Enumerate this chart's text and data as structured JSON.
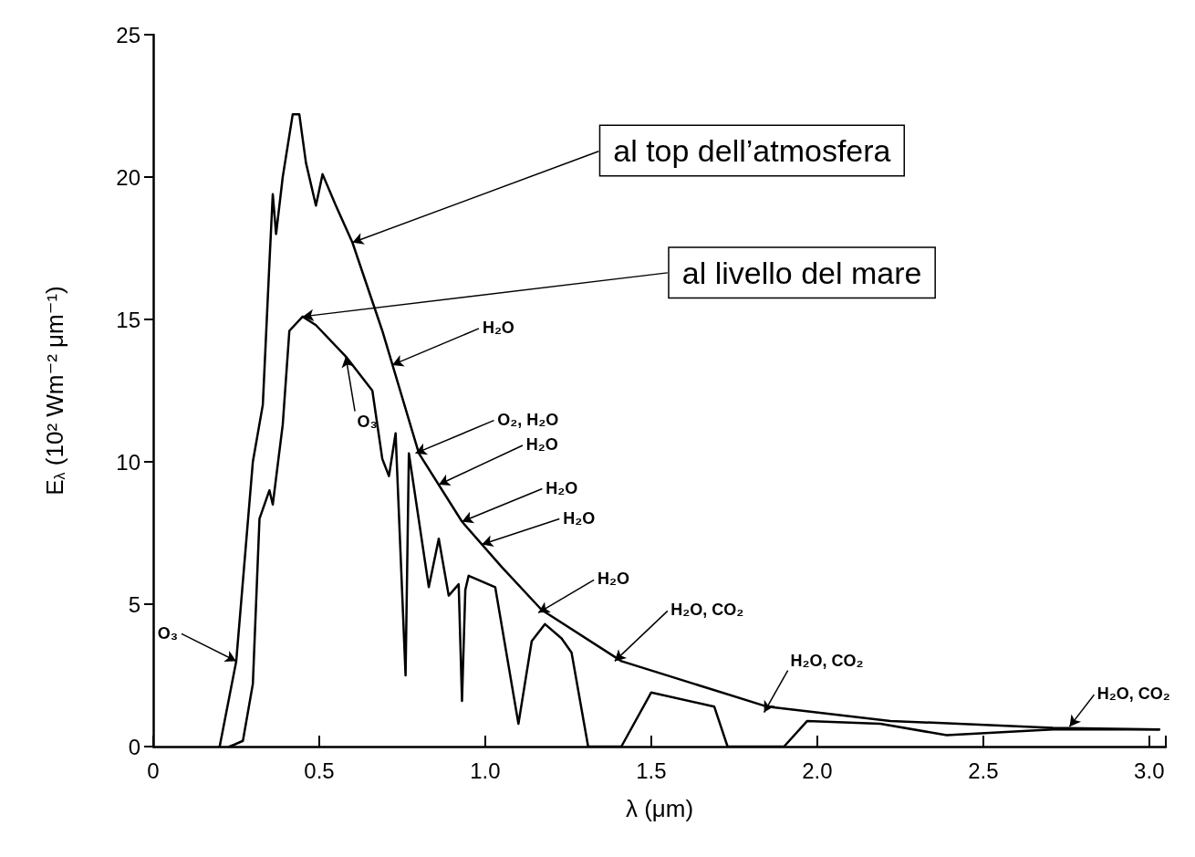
{
  "chart_data": {
    "type": "line",
    "xlabel": "λ (μm)",
    "ylabel": "E$_{λ}$ (10² Wm⁻² μm⁻¹)",
    "xlim": [
      0,
      3.05
    ],
    "ylim": [
      0,
      25
    ],
    "xticks": [
      0,
      0.5,
      {
        "value": 1,
        "label": "1.0"
      },
      1.5,
      {
        "value": 2,
        "label": "2.0"
      },
      2.5,
      {
        "value": 3,
        "label": "3.0"
      }
    ],
    "yticks": [
      0,
      5,
      10,
      15,
      20,
      25
    ],
    "grid": false,
    "marker": "none",
    "line_style": "solid",
    "series": [
      {
        "color": "#000000",
        "x": [
          0.2,
          0.25,
          0.3,
          0.33,
          0.35,
          0.36,
          0.37,
          0.39,
          0.42,
          0.44,
          0.46,
          0.49,
          0.51,
          0.55,
          0.6,
          0.69,
          0.8,
          0.93,
          1.05,
          1.17,
          1.41,
          1.85,
          2.22,
          2.71,
          3.03
        ],
        "values": [
          0,
          3,
          10,
          12,
          17,
          19.4,
          18,
          20,
          22.2,
          22.2,
          20.5,
          19,
          20.1,
          19,
          17.7,
          14.6,
          10.3,
          7.9,
          6.3,
          4.8,
          3,
          1.4,
          0.9,
          0.66,
          0.6
        ]
      },
      {
        "color": "#000000",
        "x": [
          0.23,
          0.27,
          0.3,
          0.32,
          0.35,
          0.36,
          0.39,
          0.41,
          0.45,
          0.49,
          0.58,
          0.66,
          0.69,
          0.71,
          0.73,
          0.76,
          0.77,
          0.83,
          0.86,
          0.89,
          0.92,
          0.93,
          0.94,
          0.95,
          1.03,
          1.1,
          1.14,
          1.18,
          1.23,
          1.26,
          1.31,
          1.41,
          1.5,
          1.69,
          1.73,
          1.9,
          1.97,
          2.19,
          2.39,
          2.71,
          3.03
        ],
        "values": [
          0,
          0.2,
          2.2,
          8,
          9,
          8.5,
          11.3,
          14.6,
          15.1,
          14.8,
          13.7,
          12.5,
          10.1,
          9.5,
          11,
          2.5,
          10.3,
          5.6,
          7.3,
          5.3,
          5.7,
          1.6,
          5.5,
          6,
          5.6,
          0.8,
          3.7,
          4.3,
          3.8,
          3.3,
          0,
          0,
          1.9,
          1.4,
          0,
          0,
          0.9,
          0.8,
          0.4,
          0.6,
          0.6
        ]
      }
    ],
    "annotations": [
      {
        "text": "al top dell’atmosfera",
        "x": 0.6,
        "y": 17.7
      },
      {
        "text": "al livello del mare",
        "x": 0.45,
        "y": 15.1
      },
      {
        "text": "O₃",
        "x": 0.25,
        "y": 3
      },
      {
        "text": "O₃",
        "x": 0.58,
        "y": 13.7
      },
      {
        "text": "H₂O",
        "x": 0.72,
        "y": 13.4
      },
      {
        "text": "O₂, H₂O",
        "x": 0.79,
        "y": 10.3
      },
      {
        "text": "H₂O",
        "x": 0.86,
        "y": 9.2
      },
      {
        "text": "H₂O",
        "x": 0.93,
        "y": 7.9
      },
      {
        "text": "H₂O",
        "x": 0.99,
        "y": 7.1
      },
      {
        "text": "H₂O",
        "x": 1.16,
        "y": 4.7
      },
      {
        "text": "H₂O, CO₂",
        "x": 1.39,
        "y": 3
      },
      {
        "text": "H₂O, CO₂",
        "x": 1.84,
        "y": 1.2
      },
      {
        "text": "H₂O, CO₂",
        "x": 2.76,
        "y": 0.7
      }
    ]
  }
}
